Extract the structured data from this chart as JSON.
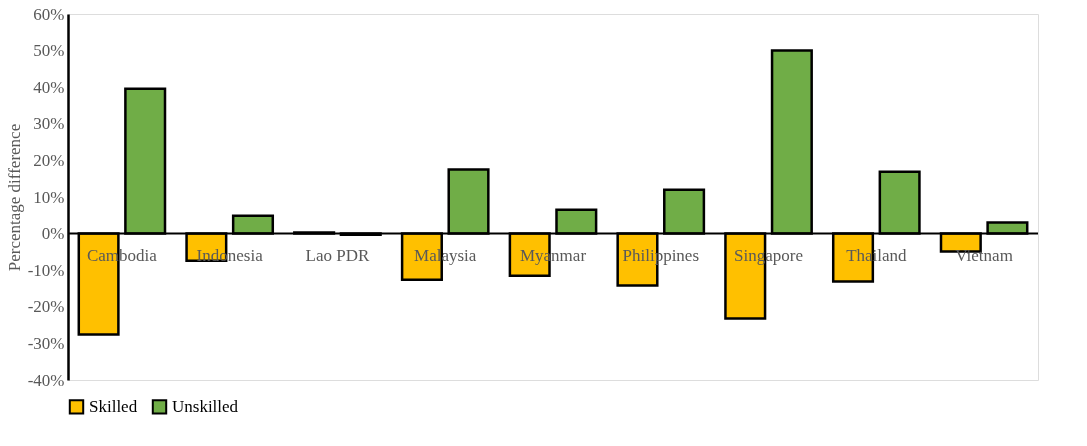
{
  "chart_data": {
    "type": "bar",
    "ylabel": "Percentage difference",
    "categories": [
      "Cambodia",
      "Indonesia",
      "Lao PDR",
      "Malaysia",
      "Myanmar",
      "Philippines",
      "Singapore",
      "Thailand",
      "Vietnam"
    ],
    "series": [
      {
        "name": "Skilled",
        "color": "#ffc000",
        "values": [
          -27.6,
          -7.4,
          0.3,
          -12.6,
          -11.5,
          -14.2,
          -23.2,
          -13.1,
          -4.9
        ]
      },
      {
        "name": "Unskilled",
        "color": "#70ad47",
        "values": [
          39.6,
          4.9,
          -0.3,
          17.5,
          6.5,
          12,
          50,
          16.9,
          3
        ]
      }
    ],
    "ylim": [
      -40,
      60
    ],
    "yticks": [
      {
        "value": -40,
        "label": "-40%"
      },
      {
        "value": -30,
        "label": "-30%"
      },
      {
        "value": -20,
        "label": "-20%"
      },
      {
        "value": -10,
        "label": "-10%"
      },
      {
        "value": 0,
        "label": "0%"
      },
      {
        "value": 10,
        "label": "10%"
      },
      {
        "value": 20,
        "label": "20%"
      },
      {
        "value": 30,
        "label": "30%"
      },
      {
        "value": 40,
        "label": "40%"
      },
      {
        "value": 50,
        "label": "50%"
      },
      {
        "value": 60,
        "label": "60%"
      }
    ],
    "grid": false,
    "legend": "bottom"
  }
}
